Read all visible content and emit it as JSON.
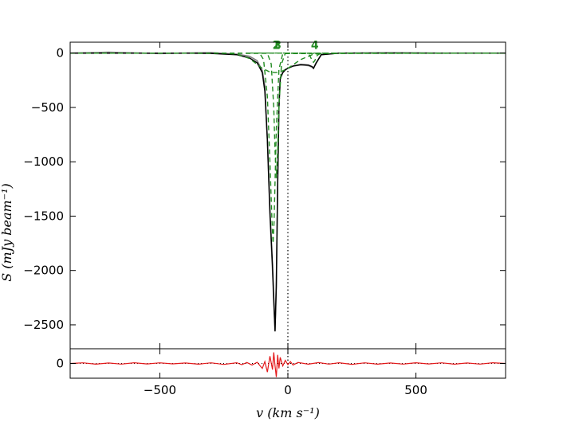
{
  "chart_data": [
    {
      "type": "line",
      "panel": "spectrum",
      "xlabel": "v (km s⁻¹)",
      "ylabel": "S (mJy beam⁻¹)",
      "xlim": [
        -850,
        850
      ],
      "ylim": [
        -2720,
        100
      ],
      "x_ticks": [
        -500,
        0,
        500
      ],
      "x_tick_labels": [
        "−500",
        "0",
        "500"
      ],
      "y_ticks": [
        0,
        -500,
        -1000,
        -1500,
        -2000,
        -2500
      ],
      "y_tick_labels": [
        "0",
        "−500",
        "−1000",
        "−1500",
        "−2000",
        "−2500"
      ],
      "grid": false,
      "reference_line_x": 0,
      "series": [
        {
          "color": "#808080",
          "style": "solid",
          "x": [
            -850,
            -700,
            -500,
            -300,
            -200,
            -150,
            -120,
            -100,
            -90,
            -80,
            -70,
            -60,
            -55,
            -50,
            -45,
            -40,
            -35,
            -30,
            -20,
            -10,
            0,
            20,
            50,
            80,
            95,
            100,
            110,
            130,
            200,
            400,
            600,
            850
          ],
          "values": [
            0,
            8,
            -5,
            5,
            -10,
            -30,
            -70,
            -160,
            -300,
            -800,
            -1500,
            -2000,
            -2300,
            -2550,
            -2100,
            -1200,
            -500,
            -240,
            -180,
            -150,
            -140,
            -120,
            -110,
            -115,
            -130,
            -140,
            -90,
            -15,
            0,
            5,
            0,
            0
          ]
        },
        {
          "color": "#000000",
          "style": "solid",
          "x": [
            -850,
            -400,
            -300,
            -200,
            -150,
            -120,
            -100,
            -90,
            -80,
            -70,
            -60,
            -55,
            -50,
            -45,
            -40,
            -35,
            -30,
            -20,
            -10,
            0,
            20,
            50,
            80,
            95,
            100,
            110,
            130,
            200,
            400,
            850
          ],
          "values": [
            0,
            0,
            -3,
            -15,
            -45,
            -90,
            -180,
            -350,
            -800,
            -1450,
            -1950,
            -2250,
            -2560,
            -2150,
            -1200,
            -500,
            -230,
            -180,
            -155,
            -140,
            -120,
            -105,
            -110,
            -125,
            -140,
            -95,
            -15,
            0,
            0,
            0
          ]
        },
        {
          "name": "1",
          "color": "#228b22",
          "style": "dashed",
          "x": [
            -850,
            -250,
            -200,
            -150,
            -100,
            -70,
            -50,
            -30,
            0,
            50,
            100,
            150,
            850
          ],
          "values": [
            0,
            -2,
            -10,
            -50,
            -140,
            -175,
            -180,
            -175,
            -140,
            -60,
            -10,
            -2,
            0
          ]
        },
        {
          "name": "2",
          "color": "#228b22",
          "style": "dashed",
          "x": [
            -850,
            -110,
            -95,
            -80,
            -70,
            -62,
            -58,
            -54,
            -45,
            -35,
            -20,
            850
          ],
          "values": [
            0,
            -2,
            -60,
            -400,
            -1000,
            -1550,
            -1750,
            -1550,
            -700,
            -150,
            -5,
            0
          ]
        },
        {
          "name": "3",
          "color": "#228b22",
          "style": "dashed",
          "x": [
            -850,
            -80,
            -65,
            -55,
            -50,
            -45,
            -40,
            -35,
            -25,
            -10,
            850
          ],
          "values": [
            0,
            -2,
            -100,
            -500,
            -900,
            -1150,
            -900,
            -500,
            -100,
            -2,
            0
          ]
        },
        {
          "name": "4",
          "color": "#228b22",
          "style": "dashed",
          "x": [
            -850,
            70,
            85,
            95,
            100,
            105,
            115,
            130,
            850
          ],
          "values": [
            0,
            0,
            -20,
            -70,
            -85,
            -70,
            -20,
            0,
            0
          ]
        }
      ],
      "component_labels": [
        {
          "text": "1",
          "x": -45
        },
        {
          "text": "2",
          "x": -45
        },
        {
          "text": "3",
          "x": -40
        },
        {
          "text": "4",
          "x": 105
        }
      ]
    },
    {
      "type": "line",
      "panel": "residual",
      "xlim": [
        -850,
        850
      ],
      "ylim": [
        -120,
        120
      ],
      "y_ticks": [
        0
      ],
      "y_tick_labels": [
        "0"
      ],
      "series": [
        {
          "color": "#e41a1c",
          "style": "solid",
          "x": [
            -850,
            -800,
            -750,
            -700,
            -650,
            -600,
            -550,
            -500,
            -450,
            -400,
            -350,
            -300,
            -250,
            -200,
            -180,
            -160,
            -140,
            -120,
            -100,
            -90,
            -80,
            -70,
            -60,
            -55,
            -50,
            -45,
            -40,
            -35,
            -30,
            -20,
            -10,
            0,
            10,
            20,
            40,
            80,
            120,
            160,
            200,
            250,
            300,
            350,
            400,
            450,
            500,
            550,
            600,
            650,
            700,
            750,
            800,
            850
          ],
          "values": [
            0,
            5,
            -6,
            4,
            -5,
            6,
            -4,
            5,
            -3,
            4,
            -6,
            5,
            -8,
            6,
            -10,
            8,
            -12,
            10,
            -40,
            15,
            -70,
            60,
            -50,
            90,
            -20,
            -110,
            70,
            -40,
            50,
            -20,
            25,
            -10,
            15,
            -12,
            8,
            -6,
            7,
            -5,
            6,
            -7,
            5,
            -6,
            4,
            -5,
            6,
            -4,
            5,
            -6,
            4,
            -5,
            6,
            0
          ]
        }
      ]
    }
  ]
}
